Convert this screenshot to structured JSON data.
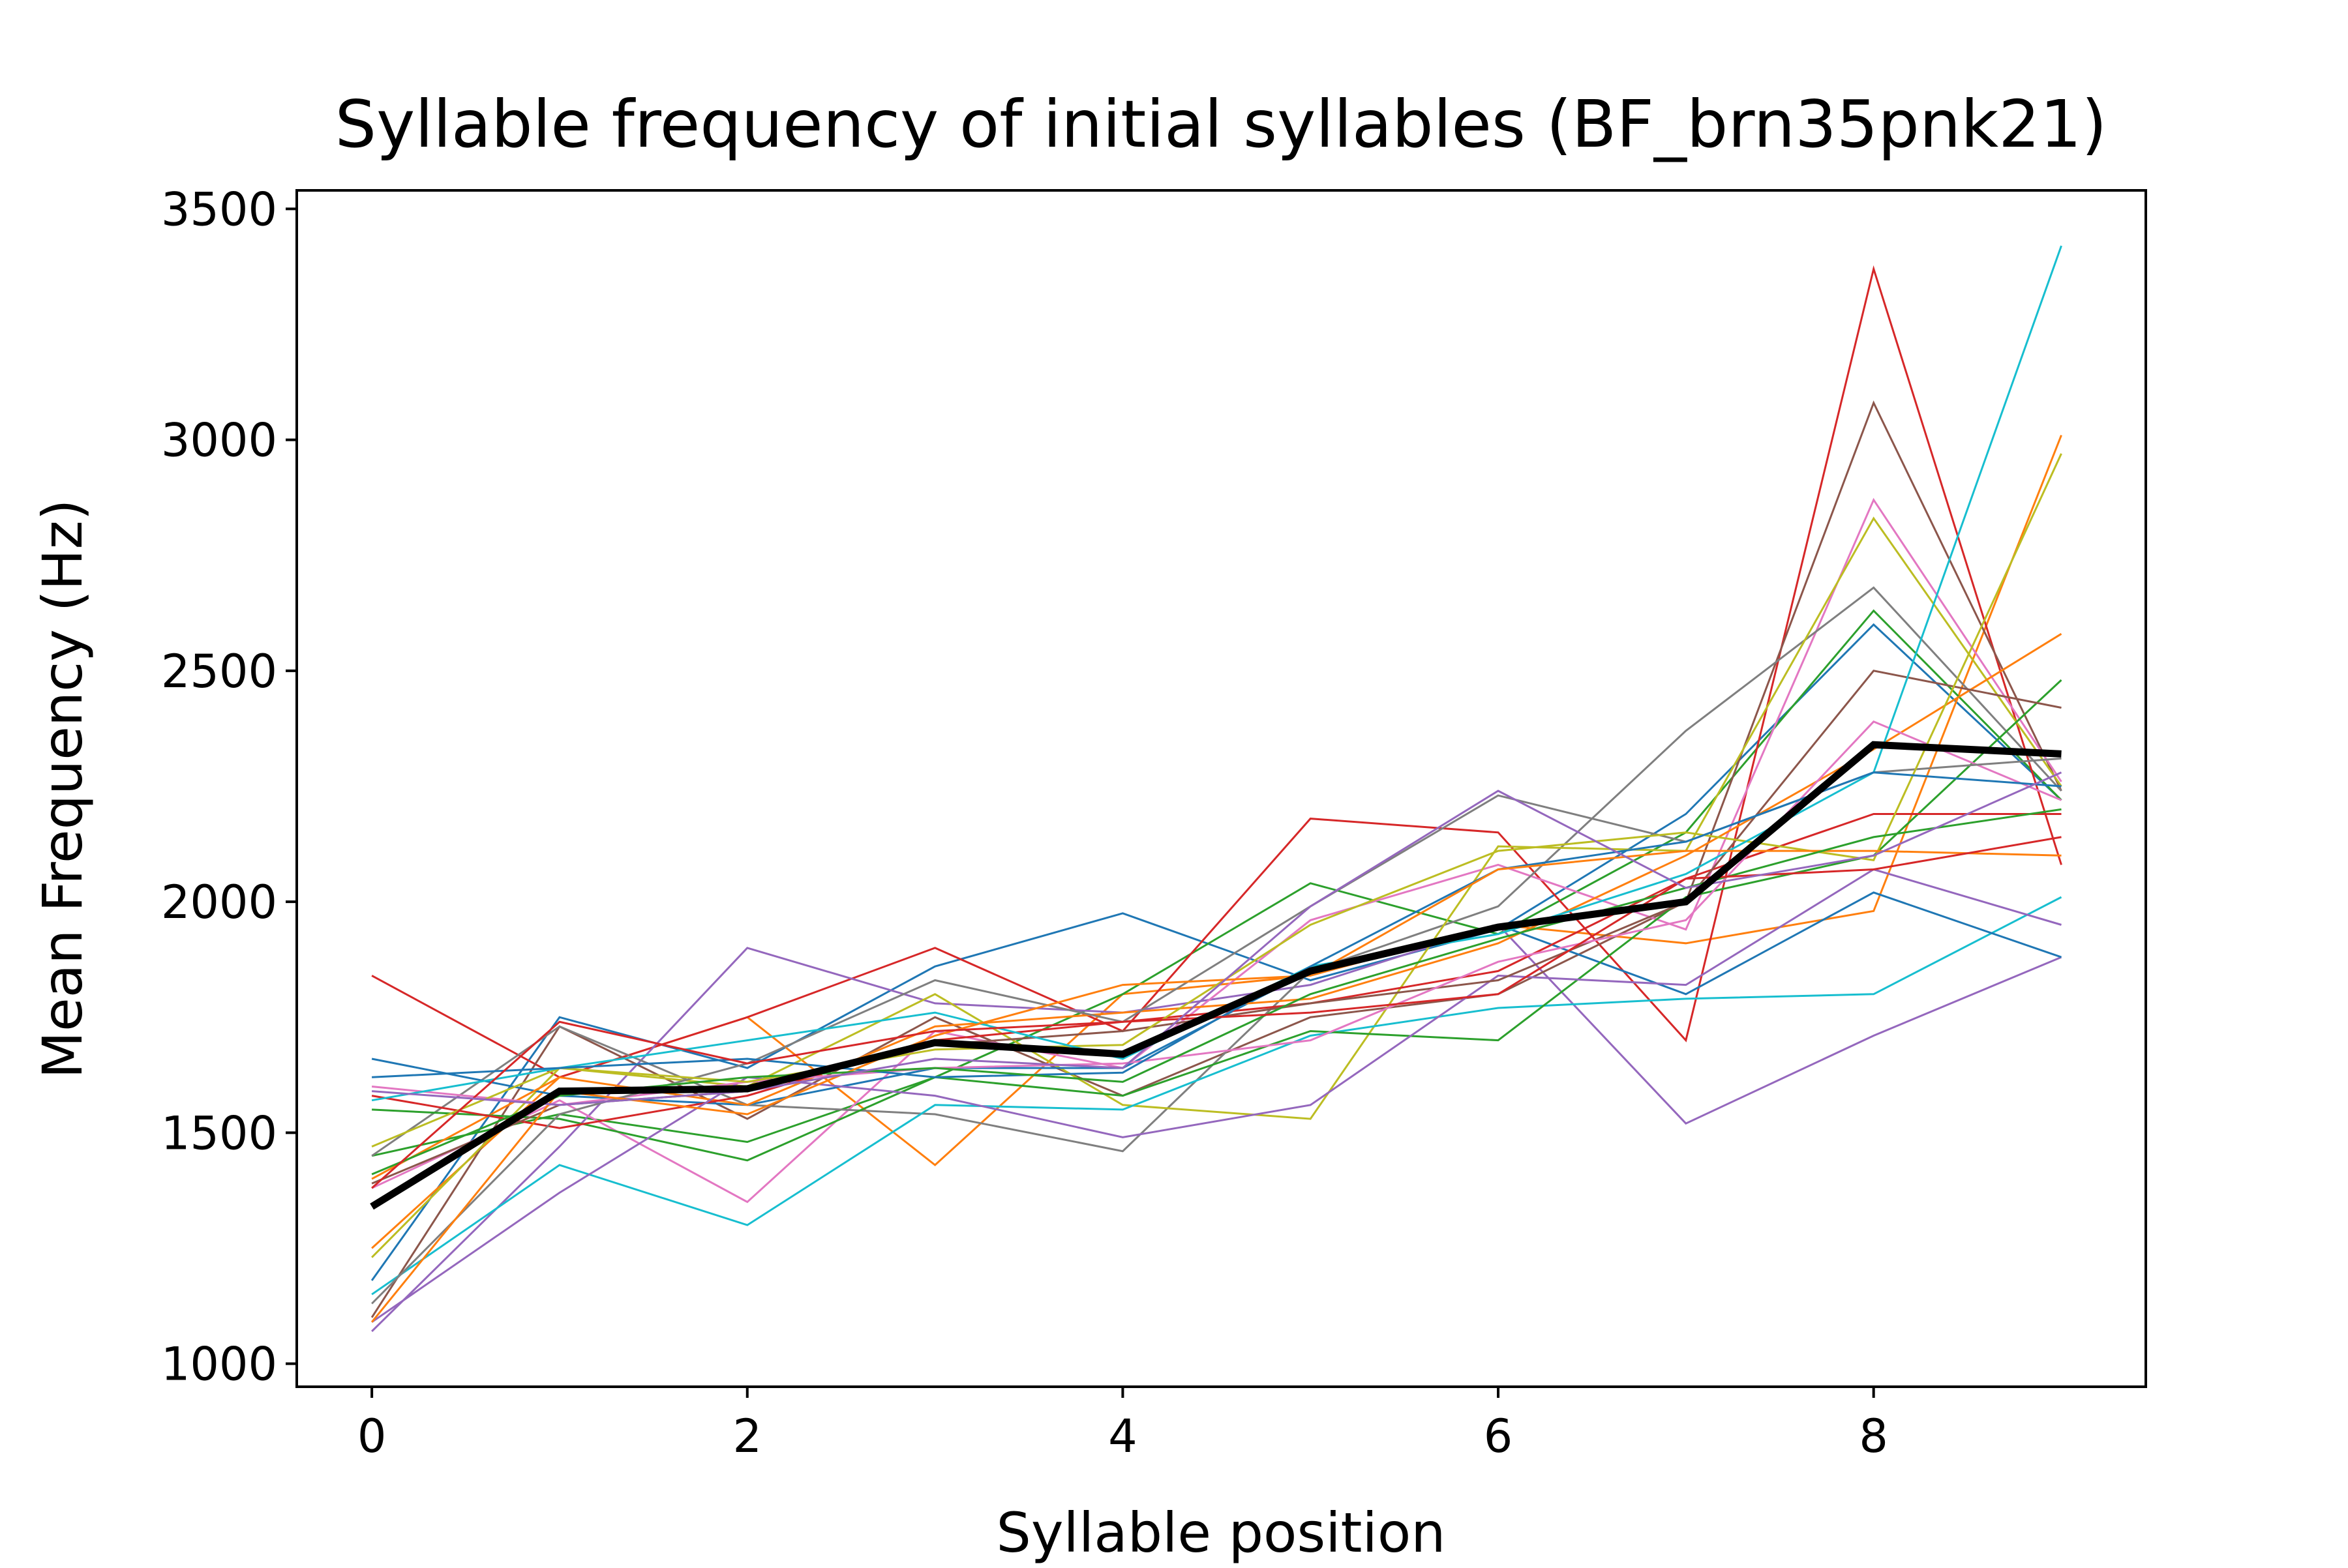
{
  "chart_data": {
    "type": "line",
    "title": "Syllable frequency of initial syllables (BF_brn35pnk21)",
    "xlabel": "Syllable position",
    "ylabel": "Mean Frequency (Hz)",
    "xlim": [
      -0.4,
      9.45
    ],
    "ylim": [
      950,
      3540
    ],
    "xticks": [
      0,
      2,
      4,
      6,
      8
    ],
    "yticks": [
      1000,
      1500,
      2000,
      2500,
      3000,
      3500
    ],
    "grid": false,
    "legend": "none",
    "x": [
      0,
      1,
      2,
      3,
      4,
      5,
      6,
      7,
      8,
      9
    ],
    "mean_series": {
      "color": "#000000",
      "values": [
        1340,
        1590,
        1595,
        1695,
        1670,
        1850,
        1945,
        2000,
        2340,
        2320
      ]
    },
    "series": [
      {
        "color": "#1f77b4",
        "values": [
          1180,
          1750,
          1640,
          1860,
          1975,
          1830,
          1940,
          2190,
          2600,
          2220
        ]
      },
      {
        "color": "#ff7f0e",
        "values": [
          1250,
          1620,
          1750,
          1430,
          1800,
          1840,
          1950,
          1910,
          1980,
          3010
        ]
      },
      {
        "color": "#2ca02c",
        "values": [
          1450,
          1540,
          1480,
          1620,
          1800,
          2040,
          1930,
          2150,
          2630,
          2220
        ]
      },
      {
        "color": "#d62728",
        "values": [
          1840,
          1620,
          1750,
          1900,
          1720,
          2180,
          2150,
          1700,
          3370,
          2080
        ]
      },
      {
        "color": "#9467bd",
        "values": [
          1070,
          1470,
          1900,
          1780,
          1760,
          1820,
          1950,
          1520,
          1710,
          1880
        ]
      },
      {
        "color": "#8c564b",
        "values": [
          1100,
          1730,
          1530,
          1750,
          1580,
          1750,
          1800,
          2000,
          3080,
          2240
        ]
      },
      {
        "color": "#e377c2",
        "values": [
          1380,
          1570,
          1350,
          1720,
          1640,
          1960,
          2080,
          1940,
          2870,
          2260
        ]
      },
      {
        "color": "#7f7f7f",
        "values": [
          1450,
          1730,
          1560,
          1540,
          1460,
          1850,
          1990,
          2370,
          2680,
          2240
        ]
      },
      {
        "color": "#bcbd22",
        "values": [
          1230,
          1640,
          1600,
          1800,
          1560,
          1530,
          2120,
          2110,
          2830,
          2250
        ]
      },
      {
        "color": "#17becf",
        "values": [
          1150,
          1430,
          1300,
          1560,
          1550,
          1710,
          1770,
          1790,
          1800,
          2010
        ]
      },
      {
        "color": "#1f77b4",
        "values": [
          1660,
          1580,
          1560,
          1640,
          1640,
          1850,
          1950,
          1800,
          2020,
          1880
        ]
      },
      {
        "color": "#ff7f0e",
        "values": [
          1400,
          1620,
          1560,
          1730,
          1760,
          1790,
          1910,
          2100,
          2330,
          2580
        ]
      },
      {
        "color": "#2ca02c",
        "values": [
          1550,
          1530,
          1440,
          1620,
          1580,
          1720,
          1700,
          2010,
          2100,
          2480
        ]
      },
      {
        "color": "#d62728",
        "values": [
          1580,
          1510,
          1580,
          1700,
          1740,
          1780,
          1850,
          2050,
          2190,
          2190
        ]
      },
      {
        "color": "#9467bd",
        "values": [
          1090,
          1370,
          1620,
          1580,
          1490,
          1560,
          1840,
          1820,
          2070,
          1950
        ]
      },
      {
        "color": "#8c564b",
        "values": [
          1390,
          1560,
          1590,
          1690,
          1720,
          1780,
          1830,
          2000,
          2500,
          2420
        ]
      },
      {
        "color": "#e377c2",
        "values": [
          1600,
          1560,
          1610,
          1640,
          1650,
          1700,
          1870,
          1960,
          2390,
          2220
        ]
      },
      {
        "color": "#7f7f7f",
        "values": [
          1130,
          1540,
          1650,
          1830,
          1740,
          1990,
          2230,
          2130,
          2280,
          2310
        ]
      },
      {
        "color": "#bcbd22",
        "values": [
          1470,
          1640,
          1610,
          1680,
          1690,
          1950,
          2110,
          2150,
          2090,
          2970
        ]
      },
      {
        "color": "#17becf",
        "values": [
          1570,
          1640,
          1700,
          1760,
          1660,
          1860,
          1930,
          2060,
          2280,
          3420
        ]
      },
      {
        "color": "#1f77b4",
        "values": [
          1620,
          1640,
          1660,
          1620,
          1630,
          1860,
          2070,
          2130,
          2280,
          2250
        ]
      },
      {
        "color": "#ff7f0e",
        "values": [
          1090,
          1590,
          1540,
          1710,
          1820,
          1840,
          2070,
          2110,
          2110,
          2100
        ]
      },
      {
        "color": "#2ca02c",
        "values": [
          1410,
          1580,
          1620,
          1640,
          1610,
          1800,
          1920,
          2030,
          2140,
          2200
        ]
      },
      {
        "color": "#d62728",
        "values": [
          1380,
          1740,
          1650,
          1720,
          1740,
          1760,
          1800,
          2050,
          2070,
          2140
        ]
      },
      {
        "color": "#9467bd",
        "values": [
          1590,
          1560,
          1590,
          1660,
          1640,
          1990,
          2240,
          2030,
          2100,
          2280
        ]
      }
    ]
  }
}
